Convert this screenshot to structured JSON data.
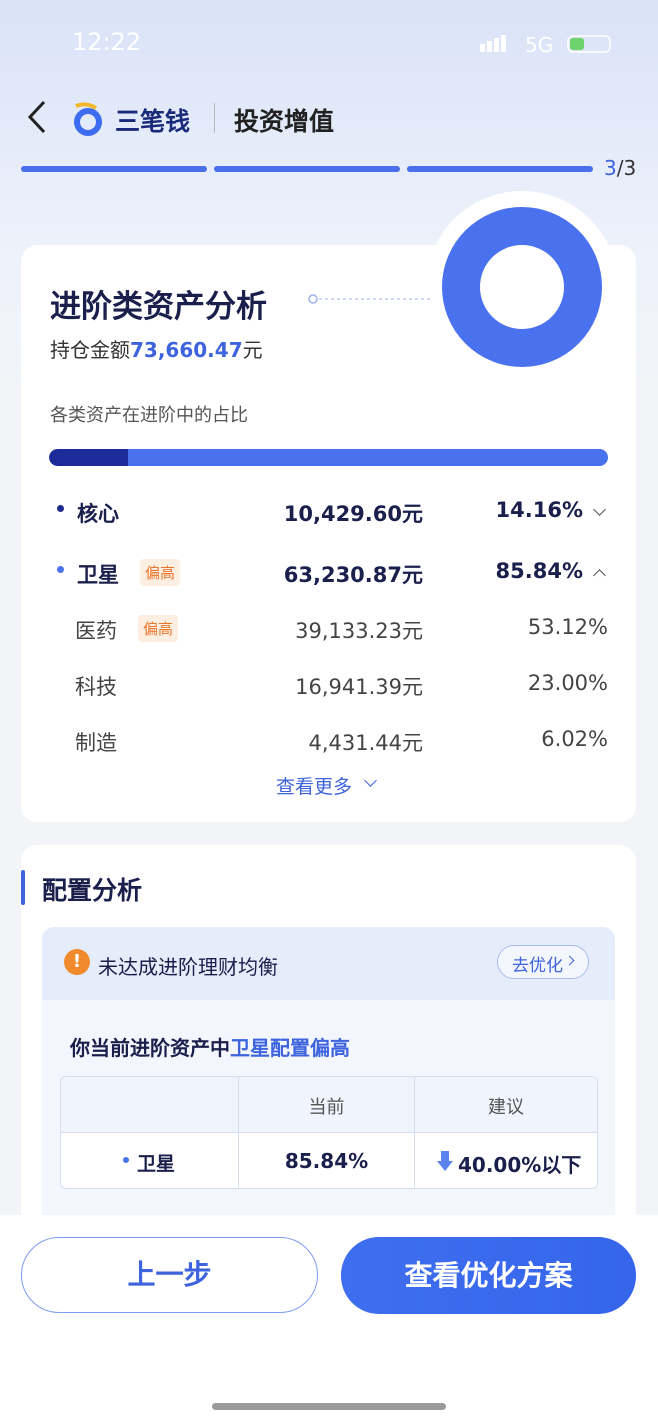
{
  "status_bar": {
    "time": "12:22",
    "network": "5G"
  },
  "header": {
    "brand": "三笔钱",
    "title": "投资增值"
  },
  "progress": {
    "current": "3",
    "total": "/3"
  },
  "analysis": {
    "title": "进阶类资产分析",
    "holding_label": "持仓金额",
    "holding_amount": "73,660.47",
    "holding_unit": "元",
    "share_caption": "各类资产在进阶中的占比",
    "groups": [
      {
        "name": "核心",
        "amount": "10,429.60元",
        "share": {
          "value": 14.16,
          "label": "14.16%"
        }
      },
      {
        "name": "卫星",
        "tag": "偏高",
        "amount": "63,230.87元",
        "share": {
          "value": 85.84,
          "label": "85.84%"
        }
      }
    ],
    "sub_items": [
      {
        "name": "医药",
        "tag": "偏高",
        "amount": "39,133.23元",
        "share": "53.12%"
      },
      {
        "name": "科技",
        "amount": "16,941.39元",
        "share": "23.00%"
      },
      {
        "name": "制造",
        "amount": "4,431.44元",
        "share": "6.02%"
      }
    ],
    "more": "查看更多"
  },
  "config": {
    "title": "配置分析",
    "alert": "未达成进阶理财均衡",
    "action": "去优化",
    "sentence": "你当前进阶资产中",
    "highlight": "卫星配置偏高",
    "table": {
      "headers": [
        "当前",
        "建议"
      ],
      "row": [
        "卫星",
        "85.84%",
        "40.00%以下"
      ]
    }
  },
  "buttons": {
    "back": "上一步",
    "primary": "查看优化方案"
  }
}
